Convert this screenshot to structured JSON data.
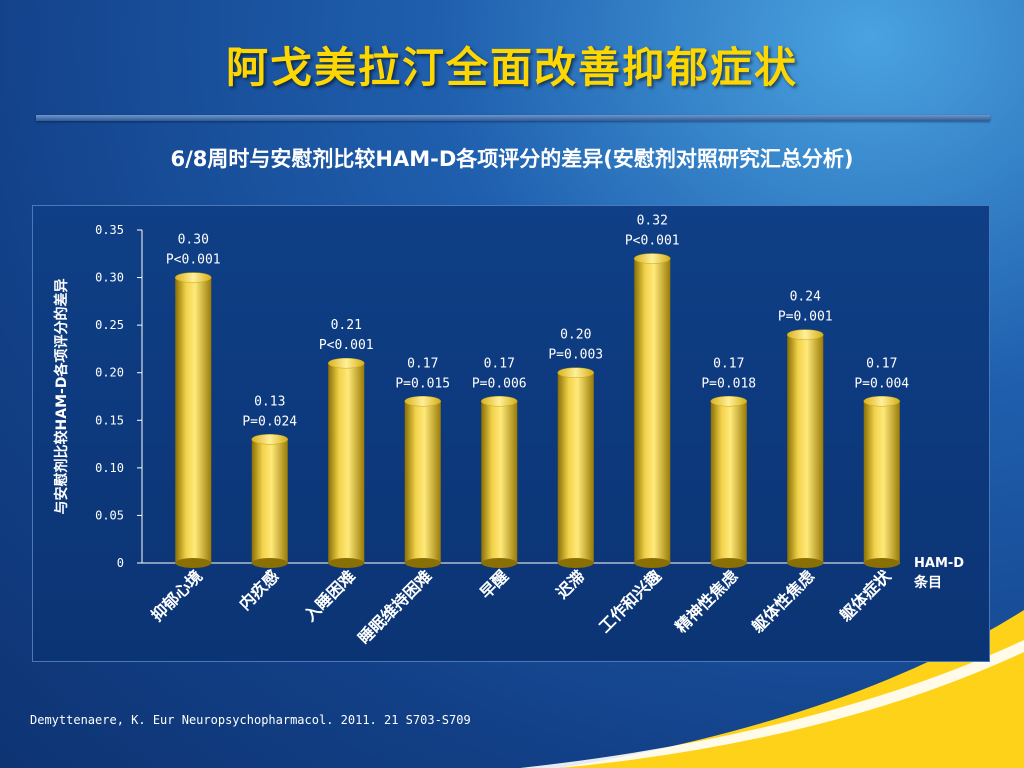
{
  "slide": {
    "title": "阿戈美拉汀全面改善抑郁症状",
    "subtitle": "6/8周时与安慰剂比较HAM-D各项评分的差异(安慰剂对照研究汇总分析)",
    "citation": "Demyttenaere, K. Eur Neuropsychopharmacol. 2011. 21 S703-S709"
  },
  "chart_data": {
    "type": "bar",
    "title": "",
    "ylabel": "与安慰剂比较HAM-D各项评分的差异",
    "xlabel_line1": "HAM-D",
    "xlabel_line2": "条目",
    "ylim": [
      0,
      0.35
    ],
    "yticks": [
      0,
      0.05,
      0.1,
      0.15,
      0.2,
      0.25,
      0.3,
      0.35
    ],
    "ytick_labels": [
      "0",
      "0.05",
      "0.10",
      "0.15",
      "0.20",
      "0.25",
      "0.30",
      "0.35"
    ],
    "categories": [
      "抑郁心境",
      "内疚感",
      "入睡困难",
      "睡眠维持困难",
      "早醒",
      "迟滞",
      "工作和兴趣",
      "精神性焦虑",
      "躯体性焦虑",
      "躯体症状"
    ],
    "values": [
      0.3,
      0.13,
      0.21,
      0.17,
      0.17,
      0.2,
      0.32,
      0.17,
      0.24,
      0.17
    ],
    "value_labels": [
      "0.30",
      "0.13",
      "0.21",
      "0.17",
      "0.17",
      "0.20",
      "0.32",
      "0.17",
      "0.24",
      "0.17"
    ],
    "p_labels": [
      "P<0.001",
      "P=0.024",
      "P<0.001",
      "P=0.015",
      "P=0.006",
      "P=0.003",
      "P<0.001",
      "P=0.018",
      "P=0.001",
      "P=0.004"
    ],
    "bar_color": "#e8c21f",
    "grid": false
  }
}
